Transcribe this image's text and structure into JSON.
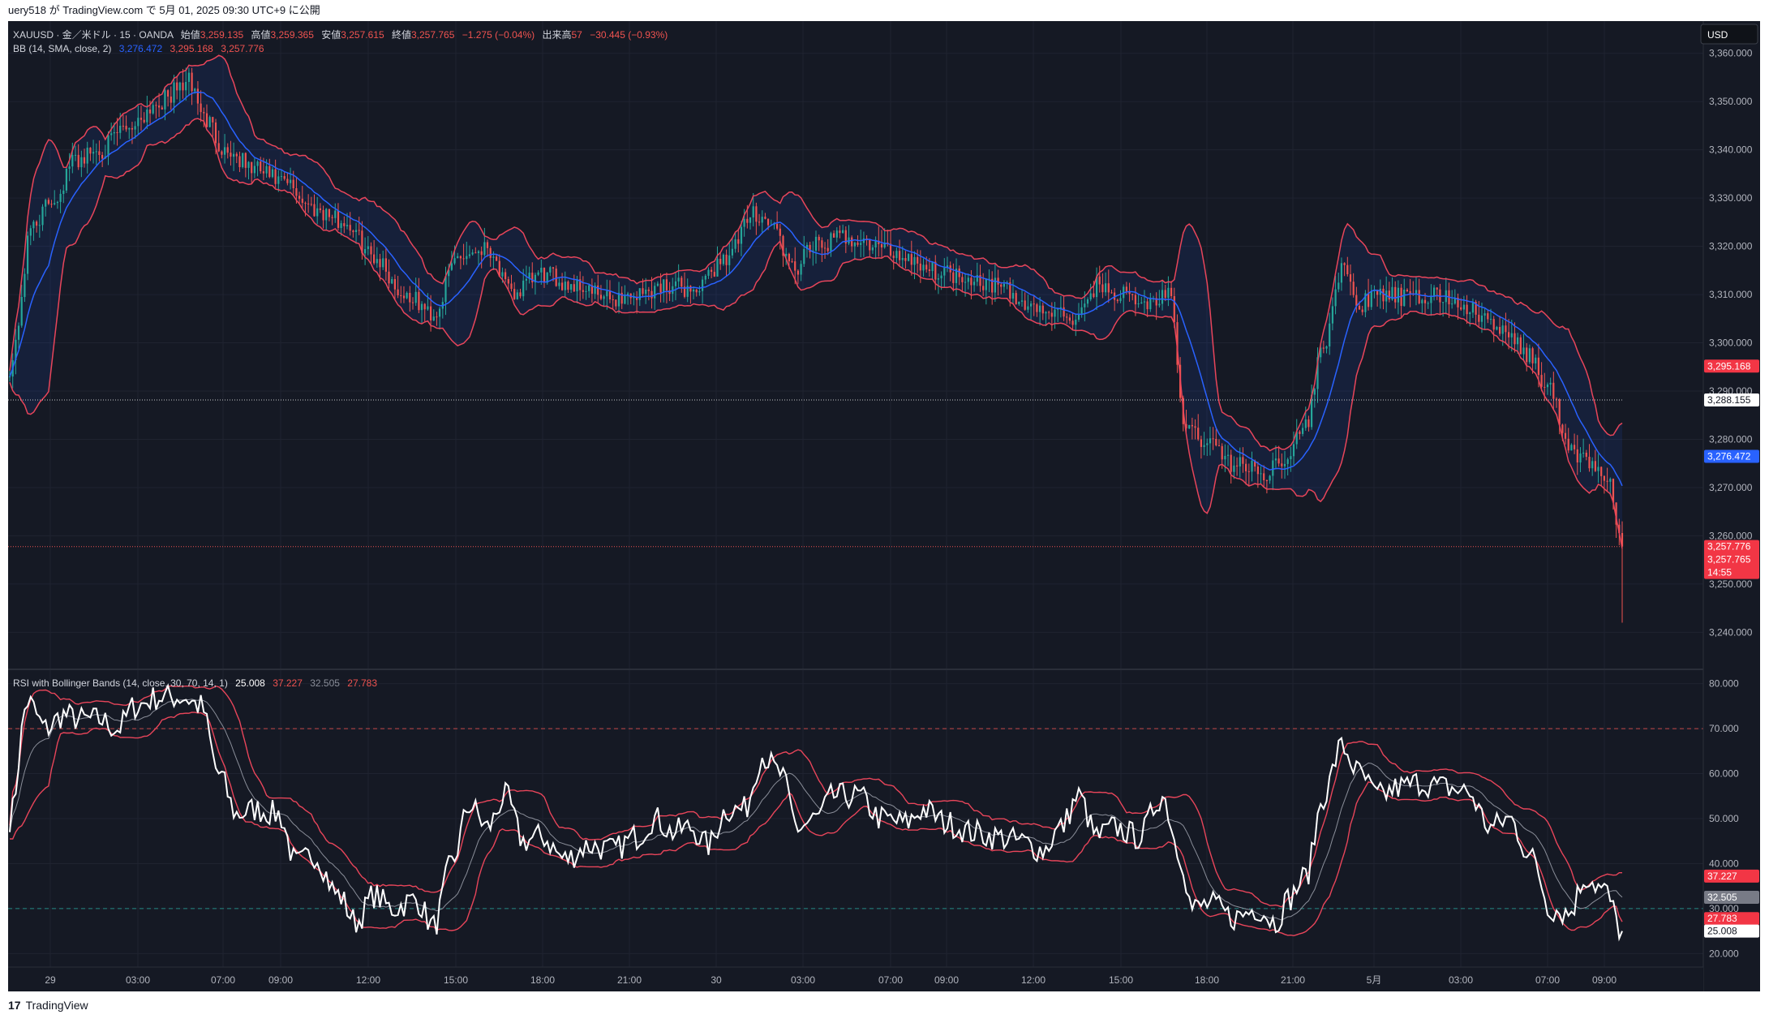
{
  "header": {
    "published_text": "uery518 が TradingView.com で 5月 01, 2025 09:30 UTC+9 に公開"
  },
  "footer": {
    "brand": "TradingView",
    "logo_mark": "17"
  },
  "colors": {
    "background": "#151924",
    "up": "#26a69a",
    "down": "#ef5350",
    "basis": "#2962ff",
    "band": "#e8455a",
    "rsi": "#ffffff"
  },
  "main_pane": {
    "symbol": "XAUUSD · 金／米ドル · 15 · OANDA",
    "ohlc": [
      {
        "label": "始値",
        "value": "3,259.135"
      },
      {
        "label": "高値",
        "value": "3,259.365"
      },
      {
        "label": "安値",
        "value": "3,257.615"
      },
      {
        "label": "終値",
        "value": "3,257.765"
      }
    ],
    "change": "−1.275 (−0.04%)",
    "volume_label": "出来高",
    "volume_value": "57",
    "volume_change": "−30.445 (−0.93%)",
    "bb_label": "BB (14, SMA, close, 2)",
    "bb_values": [
      "3,276.472",
      "3,295.168",
      "3,257.776"
    ],
    "currency_button": "USD"
  },
  "rsi_pane": {
    "label": "RSI with Bollinger Bands (14, close, 30, 70, 14, 1)",
    "values": [
      "25.008",
      "37.227",
      "32.505",
      "27.783"
    ]
  },
  "price_axis": {
    "ticks": [
      "3,360.000",
      "3,350.000",
      "3,340.000",
      "3,330.000",
      "3,320.000",
      "3,310.000",
      "3,300.000",
      "3,290.000",
      "3,280.000",
      "3,270.000",
      "3,260.000",
      "3,250.000",
      "3,240.000"
    ]
  },
  "rsi_axis": {
    "ticks": [
      "80.000",
      "70.000",
      "60.000",
      "50.000",
      "40.000",
      "30.000",
      "20.000"
    ]
  },
  "price_badges": {
    "upper": "3,295.168",
    "dotted": "3,288.155",
    "basis": "3,276.472",
    "lower": "3,257.776",
    "close": "3,257.765",
    "countdown": "14:55"
  },
  "rsi_badges": {
    "upper": "37.227",
    "basis": "32.505",
    "lower": "27.783",
    "rsi": "25.008"
  },
  "time_axis": {
    "labels": [
      "29",
      "03:00",
      "07:00",
      "09:00",
      "12:00",
      "15:00",
      "18:00",
      "21:00",
      "30",
      "03:00",
      "07:00",
      "09:00",
      "12:00",
      "15:00",
      "18:00",
      "21:00",
      "5月",
      "03:00",
      "07:00",
      "09:00"
    ]
  },
  "chart_data": {
    "type": "candlestick",
    "price_range": [
      3233,
      3365
    ],
    "rsi_range": [
      17,
      83
    ],
    "rsi_levels": [
      70,
      30
    ],
    "price_anchors": [
      [
        0,
        3295
      ],
      [
        8,
        3325
      ],
      [
        15,
        3330
      ],
      [
        22,
        3338
      ],
      [
        30,
        3340
      ],
      [
        40,
        3345
      ],
      [
        50,
        3350
      ],
      [
        60,
        3354
      ],
      [
        66,
        3346
      ],
      [
        72,
        3340
      ],
      [
        82,
        3336
      ],
      [
        92,
        3333
      ],
      [
        102,
        3328
      ],
      [
        112,
        3325
      ],
      [
        122,
        3318
      ],
      [
        132,
        3310
      ],
      [
        142,
        3306
      ],
      [
        150,
        3318
      ],
      [
        160,
        3320
      ],
      [
        168,
        3310
      ],
      [
        178,
        3314
      ],
      [
        190,
        3312
      ],
      [
        200,
        3309
      ],
      [
        210,
        3310
      ],
      [
        220,
        3312
      ],
      [
        230,
        3311
      ],
      [
        240,
        3318
      ],
      [
        250,
        3327
      ],
      [
        256,
        3324
      ],
      [
        262,
        3315
      ],
      [
        270,
        3320
      ],
      [
        280,
        3322
      ],
      [
        290,
        3320
      ],
      [
        300,
        3318
      ],
      [
        310,
        3315
      ],
      [
        320,
        3314
      ],
      [
        330,
        3312
      ],
      [
        340,
        3308
      ],
      [
        350,
        3306
      ],
      [
        358,
        3305
      ],
      [
        364,
        3312
      ],
      [
        372,
        3310
      ],
      [
        380,
        3308
      ],
      [
        388,
        3310
      ],
      [
        394,
        3282
      ],
      [
        400,
        3280
      ],
      [
        410,
        3275
      ],
      [
        420,
        3273
      ],
      [
        428,
        3277
      ],
      [
        434,
        3283
      ],
      [
        440,
        3300
      ],
      [
        446,
        3315
      ],
      [
        452,
        3308
      ],
      [
        460,
        3310
      ],
      [
        470,
        3309
      ],
      [
        478,
        3310
      ],
      [
        486,
        3308
      ],
      [
        494,
        3305
      ],
      [
        500,
        3302
      ],
      [
        508,
        3298
      ],
      [
        516,
        3290
      ],
      [
        522,
        3278
      ],
      [
        530,
        3275
      ],
      [
        536,
        3270
      ],
      [
        540,
        3257.765
      ]
    ],
    "rsi_anchors": [
      [
        0,
        50
      ],
      [
        6,
        76
      ],
      [
        12,
        70
      ],
      [
        18,
        73
      ],
      [
        24,
        72
      ],
      [
        30,
        72
      ],
      [
        36,
        70
      ],
      [
        42,
        75
      ],
      [
        50,
        77
      ],
      [
        58,
        77
      ],
      [
        64,
        75
      ],
      [
        70,
        60
      ],
      [
        76,
        51
      ],
      [
        82,
        52
      ],
      [
        90,
        51
      ],
      [
        96,
        40
      ],
      [
        102,
        42
      ],
      [
        110,
        33
      ],
      [
        116,
        27
      ],
      [
        122,
        33
      ],
      [
        128,
        30
      ],
      [
        136,
        32
      ],
      [
        142,
        26
      ],
      [
        148,
        40
      ],
      [
        154,
        53
      ],
      [
        160,
        48
      ],
      [
        166,
        55
      ],
      [
        172,
        45
      ],
      [
        178,
        46
      ],
      [
        186,
        41
      ],
      [
        194,
        44
      ],
      [
        202,
        43
      ],
      [
        210,
        46
      ],
      [
        216,
        50
      ],
      [
        222,
        47
      ],
      [
        228,
        48
      ],
      [
        234,
        44
      ],
      [
        240,
        52
      ],
      [
        246,
        52
      ],
      [
        252,
        64
      ],
      [
        258,
        60
      ],
      [
        264,
        48
      ],
      [
        270,
        50
      ],
      [
        276,
        55
      ],
      [
        284,
        55
      ],
      [
        292,
        50
      ],
      [
        300,
        49
      ],
      [
        306,
        52
      ],
      [
        314,
        49
      ],
      [
        322,
        47
      ],
      [
        330,
        46
      ],
      [
        338,
        45
      ],
      [
        346,
        43
      ],
      [
        352,
        48
      ],
      [
        358,
        55
      ],
      [
        364,
        46
      ],
      [
        370,
        48
      ],
      [
        378,
        46
      ],
      [
        386,
        55
      ],
      [
        392,
        42
      ],
      [
        396,
        30
      ],
      [
        402,
        31
      ],
      [
        410,
        28
      ],
      [
        418,
        30
      ],
      [
        424,
        27
      ],
      [
        428,
        32
      ],
      [
        434,
        37
      ],
      [
        440,
        55
      ],
      [
        446,
        66
      ],
      [
        452,
        60
      ],
      [
        458,
        55
      ],
      [
        466,
        57
      ],
      [
        472,
        58
      ],
      [
        480,
        57
      ],
      [
        488,
        56
      ],
      [
        496,
        48
      ],
      [
        502,
        50
      ],
      [
        510,
        41
      ],
      [
        516,
        30
      ],
      [
        522,
        29
      ],
      [
        528,
        37
      ],
      [
        534,
        34
      ],
      [
        540,
        25
      ]
    ],
    "candles": 541
  }
}
